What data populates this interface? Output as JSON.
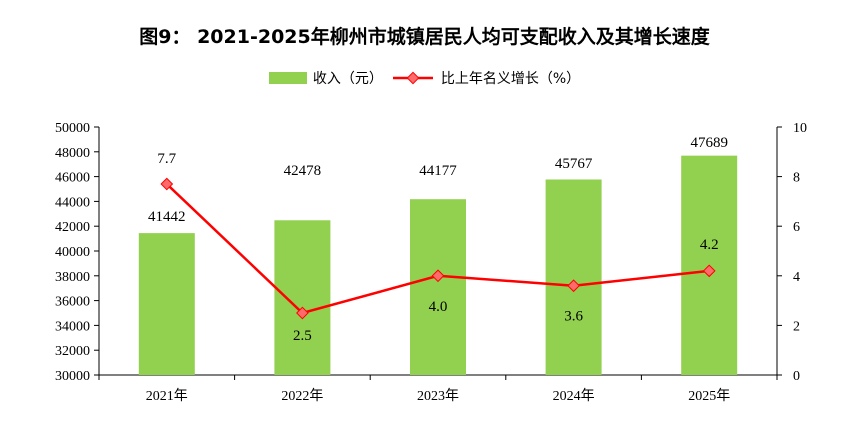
{
  "chart_data": {
    "type": "bar",
    "title": "图9： 2021-2025年柳州市城镇居民人均可支配收入及其增长速度",
    "categories": [
      "2021年",
      "2022年",
      "2023年",
      "2024年",
      "2025年"
    ],
    "series": [
      {
        "name": "收入（元）",
        "type": "bar",
        "axis": "left",
        "color": "#92d050",
        "values": [
          41442,
          42478,
          44177,
          45767,
          47689
        ]
      },
      {
        "name": "比上年名义增长（%）",
        "type": "line",
        "axis": "right",
        "color": "#ff0000",
        "values": [
          7.7,
          2.5,
          4.0,
          3.6,
          4.2
        ]
      }
    ],
    "left_axis": {
      "ylim": [
        30000,
        50000
      ],
      "step": 2000
    },
    "right_axis": {
      "ylim": [
        0,
        10
      ],
      "step": 2
    },
    "data_labels": {
      "bars": [
        "41442",
        "42478",
        "44177",
        "45767",
        "47689"
      ],
      "line": [
        "7.7",
        "2.5",
        "4.0",
        "3.6",
        "4.2"
      ]
    },
    "legend_position": "top-center",
    "grid": false
  }
}
